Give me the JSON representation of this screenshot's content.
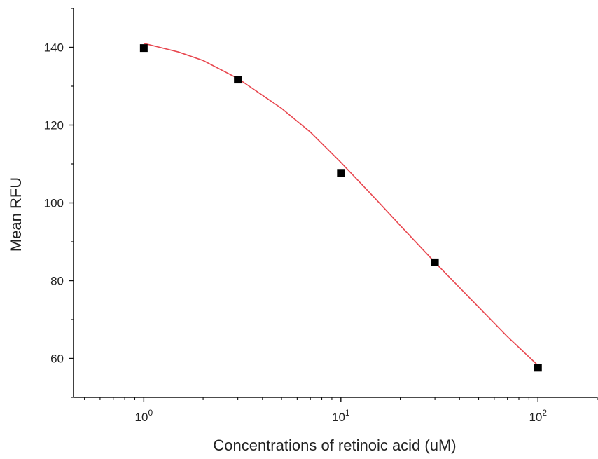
{
  "chart_data": {
    "type": "scatter",
    "title": "",
    "xlabel": "Concentrations of retinoic acid (uM)",
    "ylabel": "Mean RFU",
    "x_scale": "log",
    "xlim": [
      0.44,
      200
    ],
    "ylim": [
      50,
      150
    ],
    "x_ticks": [
      {
        "value": 1,
        "base": "10",
        "exp": "0"
      },
      {
        "value": 10,
        "base": "10",
        "exp": "1"
      },
      {
        "value": 100,
        "base": "10",
        "exp": "2"
      }
    ],
    "y_ticks": [
      {
        "value": 60,
        "label": "60"
      },
      {
        "value": 80,
        "label": "80"
      },
      {
        "value": 100,
        "label": "100"
      },
      {
        "value": 120,
        "label": "120"
      },
      {
        "value": 140,
        "label": "140"
      }
    ],
    "series": [
      {
        "type": "scatter",
        "marker": "square",
        "color": "#000000",
        "x": [
          1,
          3,
          10,
          30,
          100
        ],
        "y": [
          139.8,
          131.7,
          107.7,
          84.7,
          57.6
        ]
      },
      {
        "type": "line",
        "fit": true,
        "color": "#e8474f",
        "x": [
          1,
          1.5,
          2,
          3,
          5,
          7,
          10,
          15,
          20,
          30,
          50,
          70,
          100
        ],
        "y": [
          141.0,
          138.8,
          136.6,
          132.0,
          124.3,
          118.2,
          110.4,
          101.0,
          94.2,
          84.7,
          73.2,
          65.6,
          58.2
        ]
      }
    ],
    "grid": false,
    "legend": "none"
  }
}
